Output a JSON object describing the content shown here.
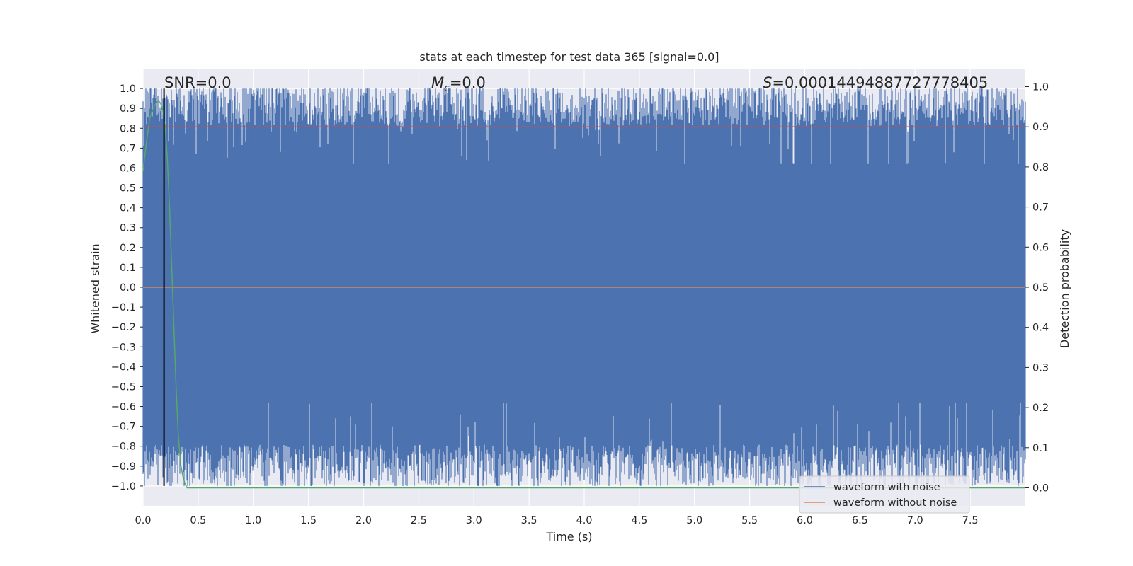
{
  "chart_data": {
    "type": "line",
    "title": "stats at each timestep for test data 365 [signal=0.0]",
    "xlabel": "Time (s)",
    "ylabel": "Whitened strain",
    "ylabel_right": "Detection probability",
    "xlim": [
      0.0,
      8.0
    ],
    "ylim": [
      -1.1,
      1.1
    ],
    "ylim_right": [
      -0.045,
      1.045
    ],
    "x_ticks": [
      "0.0",
      "0.5",
      "1.0",
      "1.5",
      "2.0",
      "2.5",
      "3.0",
      "3.5",
      "4.0",
      "4.5",
      "5.0",
      "5.5",
      "6.0",
      "6.5",
      "7.0",
      "7.5"
    ],
    "y_ticks": [
      "1.0",
      "0.9",
      "0.8",
      "0.7",
      "0.6",
      "0.5",
      "0.4",
      "0.3",
      "0.2",
      "0.1",
      "0.0",
      "−0.1",
      "−0.2",
      "−0.3",
      "−0.4",
      "−0.5",
      "−0.6",
      "−0.7",
      "−0.8",
      "−0.9",
      "−1.0"
    ],
    "y_ticks_right": [
      "1.0",
      "0.9",
      "0.8",
      "0.7",
      "0.6",
      "0.5",
      "0.4",
      "0.3",
      "0.2",
      "0.1",
      "0.0"
    ],
    "grid": true,
    "legend_placement": "lower right",
    "annotations": {
      "snr": "SNR=0.0",
      "mc_symbol": "M",
      "mc_sub": "c",
      "mc_value": "=0.0",
      "s_symbol": "S",
      "s_value": "=0.00014494887727778405"
    },
    "series": [
      {
        "name": "waveform with noise",
        "color": "#4c72b0",
        "description_of_shape": "dense noise filling roughly -1 to 1",
        "envelope_upper_typical": 0.9,
        "envelope_lower_typical": -0.88
      },
      {
        "name": "waveform without noise",
        "color": "#dd8452",
        "x": [
          0.0,
          8.0
        ],
        "y": [
          0.0,
          0.0
        ]
      },
      {
        "axis": "right",
        "color": "#55a868",
        "x": [
          0.0,
          0.03,
          0.06,
          0.09,
          0.12,
          0.14,
          0.16,
          0.18,
          0.2,
          0.22,
          0.24,
          0.26,
          0.28,
          0.3,
          0.32,
          0.34,
          0.36,
          0.38,
          0.4,
          8.0
        ],
        "y": [
          0.79,
          0.86,
          0.92,
          0.945,
          0.96,
          0.965,
          0.958,
          0.94,
          0.9,
          0.82,
          0.7,
          0.55,
          0.4,
          0.25,
          0.13,
          0.06,
          0.03,
          0.01,
          0.0,
          0.0
        ]
      },
      {
        "axis": "right",
        "color": "#c44e52",
        "x": [
          0.0,
          8.0
        ],
        "y": [
          0.9,
          0.9
        ]
      }
    ],
    "vertical_marker": {
      "x": 0.19,
      "color": "#000000"
    },
    "legend": [
      {
        "label": "waveform with noise",
        "color": "#4c72b0"
      },
      {
        "label": "waveform without noise",
        "color": "#dd8452"
      }
    ],
    "background_color": "#eaeaf2"
  }
}
